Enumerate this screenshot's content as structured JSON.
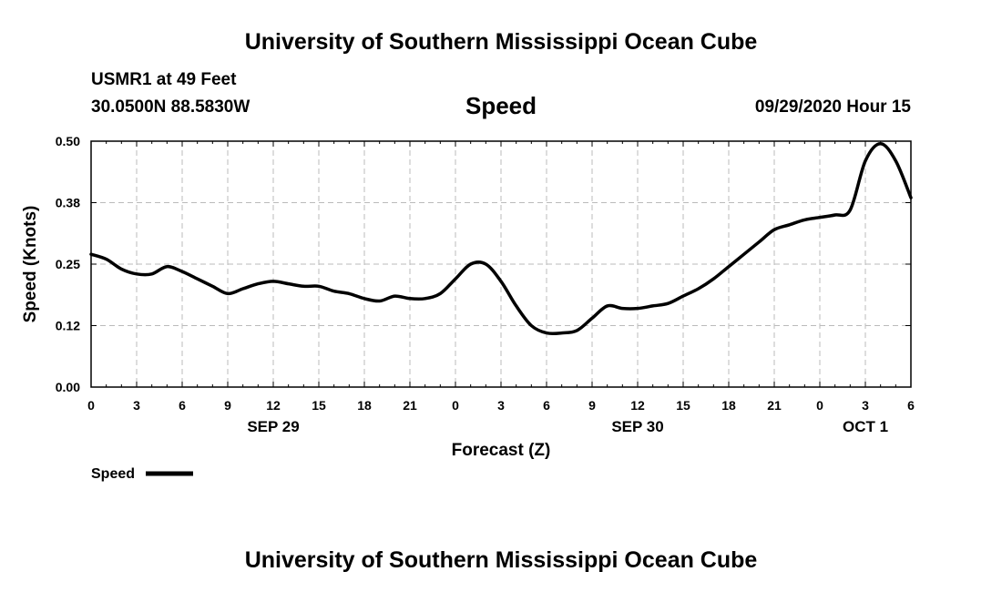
{
  "header": {
    "org_title": "University of Southern Mississippi Ocean Cube",
    "station": "USMR1 at 49 Feet",
    "coords": "30.0500N 88.5830W",
    "issued": "09/29/2020 Hour 15"
  },
  "footer": {
    "org_title": "University of Southern Mississippi Ocean Cube"
  },
  "colors": {
    "line": "#000000",
    "grid": "#bbbbbb"
  },
  "chart_data": {
    "type": "line",
    "title": "Speed",
    "xlabel": "Forecast (Z)",
    "ylabel": "Speed (Knots)",
    "xlim": [
      0,
      54
    ],
    "ylim": [
      0,
      0.5
    ],
    "yticks": [
      0.0,
      0.125,
      0.25,
      0.375,
      0.5
    ],
    "ytick_labels": [
      "0.00",
      "0.12",
      "0.25",
      "0.38",
      "0.50"
    ],
    "xticks": [
      0,
      3,
      6,
      9,
      12,
      15,
      18,
      21,
      24,
      27,
      30,
      33,
      36,
      39,
      42,
      45,
      48,
      51,
      54
    ],
    "xtick_labels": [
      "0",
      "3",
      "6",
      "9",
      "12",
      "15",
      "18",
      "21",
      "0",
      "3",
      "6",
      "9",
      "12",
      "15",
      "18",
      "21",
      "0",
      "3",
      "6"
    ],
    "date_labels": [
      {
        "x": 12,
        "label": "SEP 29"
      },
      {
        "x": 36,
        "label": "SEP 30"
      },
      {
        "x": 51,
        "label": "OCT 1"
      }
    ],
    "legend": {
      "label": "Speed",
      "position": "bottom-left"
    },
    "series": [
      {
        "name": "Speed",
        "x": [
          0,
          1,
          2,
          3,
          4,
          5,
          6,
          7,
          8,
          9,
          10,
          11,
          12,
          13,
          14,
          15,
          16,
          17,
          18,
          19,
          20,
          21,
          22,
          23,
          24,
          25,
          26,
          27,
          28,
          29,
          30,
          31,
          32,
          33,
          34,
          35,
          36,
          37,
          38,
          39,
          40,
          41,
          42,
          43,
          44,
          45,
          46,
          47,
          48,
          49,
          50,
          51,
          52,
          53,
          54
        ],
        "values": [
          0.27,
          0.26,
          0.24,
          0.23,
          0.23,
          0.245,
          0.235,
          0.22,
          0.205,
          0.19,
          0.2,
          0.21,
          0.215,
          0.21,
          0.205,
          0.205,
          0.195,
          0.19,
          0.18,
          0.175,
          0.185,
          0.18,
          0.18,
          0.19,
          0.22,
          0.25,
          0.25,
          0.215,
          0.165,
          0.125,
          0.11,
          0.11,
          0.115,
          0.14,
          0.165,
          0.16,
          0.16,
          0.165,
          0.17,
          0.185,
          0.2,
          0.22,
          0.245,
          0.27,
          0.295,
          0.32,
          0.33,
          0.34,
          0.345,
          0.35,
          0.36,
          0.46,
          0.495,
          0.46,
          0.385
        ]
      }
    ]
  }
}
